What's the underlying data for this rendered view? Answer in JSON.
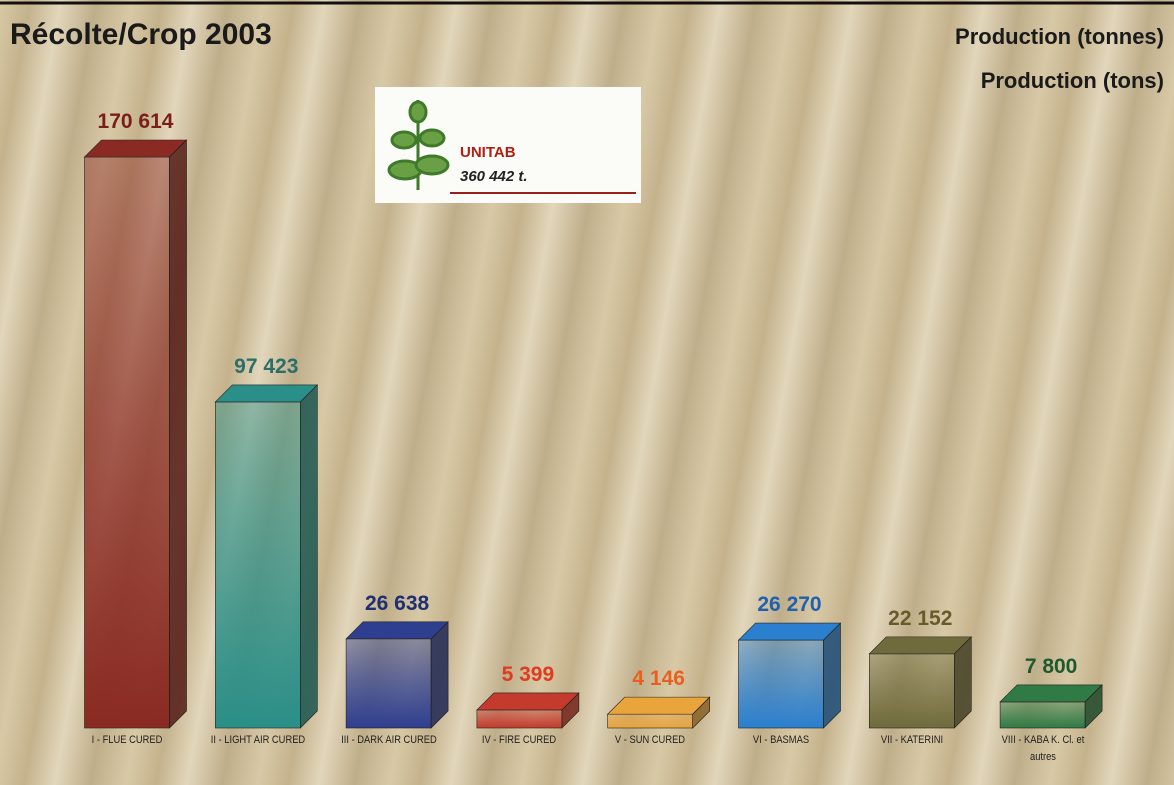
{
  "chart_data": {
    "type": "bar3d",
    "title": "Récolte/Crop 2003",
    "subtitles": [
      "Production (tonnes)",
      "Production (tons)"
    ],
    "inset": {
      "name": "UNITAB",
      "total": "360 442 t."
    },
    "categories": [
      "I - FLUE CURED",
      "II - LIGHT AIR CURED",
      "III - DARK AIR CURED",
      "IV - FIRE CURED",
      "V - SUN CURED",
      "VI - BASMAS",
      "VII - KATERINI",
      "VIII - KABA K. Cl. et autres"
    ],
    "values": [
      170614,
      97423,
      26638,
      5399,
      4146,
      26270,
      22152,
      7800
    ],
    "value_labels": [
      "170 614",
      "97 423",
      "26 638",
      "5 399",
      "4 146",
      "26 270",
      "22 152",
      "7 800"
    ],
    "colors": [
      "#8a2a22",
      "#2a8f88",
      "#2f3f90",
      "#c43a2c",
      "#e9a43c",
      "#2a7fcf",
      "#6f6b3c",
      "#2f7a45"
    ],
    "label_colors": [
      "#7a1e1a",
      "#2a6f6a",
      "#1f2f6f",
      "#e03a20",
      "#e86020",
      "#2060b0",
      "#6a5a2a",
      "#1e5a2e"
    ]
  }
}
